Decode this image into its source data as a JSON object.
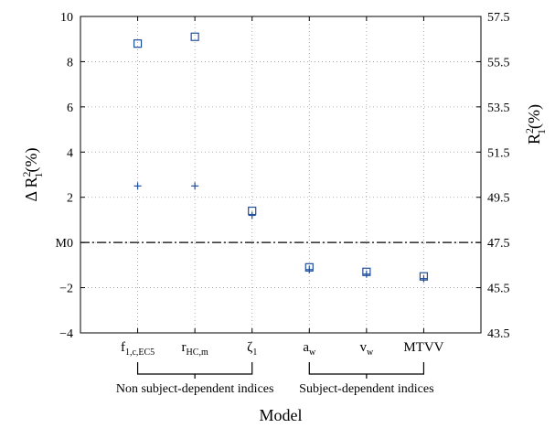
{
  "chart_data": {
    "type": "scatter",
    "xlabel": "Model",
    "categories": [
      {
        "main": "f",
        "sub": "1,c,EC5"
      },
      {
        "main": "r",
        "sub": "HC,m"
      },
      {
        "main": "ζ",
        "sub": "1"
      },
      {
        "main": "a",
        "sub": "w"
      },
      {
        "main": "v",
        "sub": "w"
      },
      {
        "main": "MTVV",
        "sub": ""
      }
    ],
    "ylim": [
      -4,
      10
    ],
    "y_ticks": [
      "−4",
      "−2",
      "M0",
      "2",
      "4",
      "6",
      "8",
      "10"
    ],
    "y_tick_values": [
      -4,
      -2,
      0,
      2,
      4,
      6,
      8,
      10
    ],
    "ylabel_left": {
      "prefix": "Δ R",
      "sup": "2",
      "sub": "1",
      "suffix": "(%)"
    },
    "y2lim": [
      43.5,
      57.5
    ],
    "y2_ticks": [
      "43.5",
      "45.5",
      "47.5",
      "49.5",
      "51.5",
      "53.5",
      "55.5",
      "57.5"
    ],
    "y2_tick_values": [
      43.5,
      45.5,
      47.5,
      49.5,
      51.5,
      53.5,
      55.5,
      57.5
    ],
    "ylabel_right": {
      "prefix": "R",
      "sup": "2",
      "sub": "1",
      "suffix": "(%)"
    },
    "reference_line": {
      "y": 0,
      "style": "dash-dot"
    },
    "grid": true,
    "series": [
      {
        "marker": "square",
        "axis": "left",
        "color": "#1f4e9c",
        "values": [
          8.8,
          9.1,
          1.4,
          -1.1,
          -1.3,
          -1.5
        ]
      },
      {
        "marker": "plus",
        "axis": "left",
        "color": "#1f4e9c",
        "values": [
          2.5,
          2.5,
          1.2,
          -1.2,
          -1.4,
          -1.6
        ]
      }
    ],
    "groups": [
      {
        "label": "Non subject-dependent indices",
        "from": 0,
        "to": 2
      },
      {
        "label": "Subject-dependent indices",
        "from": 3,
        "to": 5
      }
    ]
  }
}
